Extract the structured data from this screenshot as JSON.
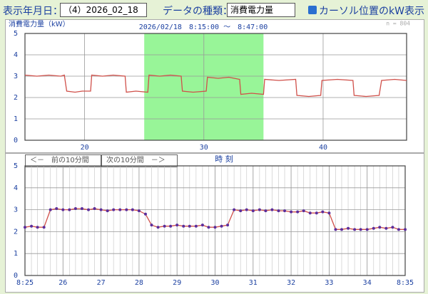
{
  "header": {
    "date_label": "表示年月日：",
    "date_value": "（4）2026_02_18",
    "type_label": "データの種類：",
    "type_value": "消費電力量",
    "checkbox_label": "カーソル位置のkW表示"
  },
  "controls": {
    "prev": "＜－　前の10分間",
    "next": "次の10分間　－＞"
  },
  "chart_data": [
    {
      "type": "line",
      "title": "消費電力量（kW）",
      "subtitle": "2026/02/18　8:15:00 ～　8:47:00",
      "note": "n = 804",
      "xlabel": "時 刻",
      "x": [
        15,
        16,
        17,
        18,
        18.3,
        18.5,
        19.2,
        19.8,
        20.5,
        20.6,
        21.5,
        22.4,
        23.4,
        23.5,
        24.3,
        25.3,
        25.4,
        26.3,
        27.2,
        28.1,
        28.2,
        29.1,
        30.2,
        30.3,
        31.2,
        32.1,
        33.0,
        33.1,
        34.0,
        35.0,
        35.1,
        36.3,
        37.7,
        37.8,
        38.8,
        39.8,
        39.9,
        41.2,
        42.5,
        42.6,
        43.6,
        44.7,
        44.9,
        46,
        47
      ],
      "values": [
        3.05,
        3.0,
        3.05,
        3.0,
        3.05,
        2.3,
        2.25,
        2.3,
        2.3,
        3.05,
        3.0,
        3.05,
        3.0,
        2.25,
        2.3,
        2.25,
        3.05,
        3.0,
        3.05,
        3.0,
        2.3,
        2.25,
        2.3,
        2.95,
        2.9,
        2.95,
        2.85,
        2.15,
        2.2,
        2.15,
        2.85,
        2.8,
        2.85,
        2.1,
        2.05,
        2.1,
        2.8,
        2.85,
        2.8,
        2.1,
        2.05,
        2.1,
        2.8,
        2.85,
        2.8
      ],
      "color": "#d0504a",
      "highlight": [
        25,
        35
      ],
      "highlight_color": "#98f598",
      "xlim": [
        15,
        47
      ],
      "ylim": [
        0,
        5
      ],
      "xticks": [
        20,
        30,
        40
      ],
      "yticks": [
        0,
        1,
        2,
        3,
        4,
        5
      ],
      "grid": true
    },
    {
      "type": "line",
      "markers": true,
      "x": [
        25,
        25.17,
        25.33,
        25.5,
        25.67,
        25.83,
        26,
        26.17,
        26.33,
        26.5,
        26.67,
        26.83,
        27,
        27.17,
        27.33,
        27.5,
        27.67,
        27.83,
        28,
        28.17,
        28.33,
        28.5,
        28.67,
        28.83,
        29,
        29.17,
        29.33,
        29.5,
        29.67,
        29.83,
        30,
        30.17,
        30.33,
        30.5,
        30.67,
        30.83,
        31,
        31.17,
        31.33,
        31.5,
        31.67,
        31.83,
        32,
        32.17,
        32.33,
        32.5,
        32.67,
        32.83,
        33,
        33.17,
        33.33,
        33.5,
        33.67,
        33.83,
        34,
        34.17,
        34.33,
        34.5,
        34.67,
        34.83,
        35
      ],
      "values": [
        2.2,
        2.25,
        2.2,
        2.2,
        3.0,
        3.05,
        3.0,
        3.0,
        3.05,
        3.05,
        3.0,
        3.05,
        3.0,
        2.95,
        3.0,
        3.0,
        3.0,
        3.0,
        2.95,
        2.8,
        2.3,
        2.2,
        2.25,
        2.25,
        2.3,
        2.25,
        2.25,
        2.25,
        2.3,
        2.2,
        2.2,
        2.25,
        2.3,
        3.0,
        2.95,
        3.0,
        2.95,
        3.0,
        2.95,
        3.0,
        2.95,
        2.95,
        2.9,
        2.9,
        2.95,
        2.85,
        2.85,
        2.9,
        2.85,
        2.1,
        2.1,
        2.15,
        2.1,
        2.1,
        2.1,
        2.15,
        2.2,
        2.15,
        2.2,
        2.1,
        2.1
      ],
      "color": "#d0504a",
      "marker_color": "#5a2d9c",
      "xlim": [
        25,
        35
      ],
      "ylim": [
        0,
        5
      ],
      "xticks": [
        {
          "value": 25,
          "label": "8:25"
        },
        26,
        27,
        28,
        29,
        30,
        31,
        32,
        33,
        34,
        {
          "value": 35,
          "label": "8:35"
        }
      ],
      "yticks": [
        0,
        1,
        2,
        3,
        4,
        5
      ],
      "grid": true,
      "minor_grid": true
    }
  ]
}
